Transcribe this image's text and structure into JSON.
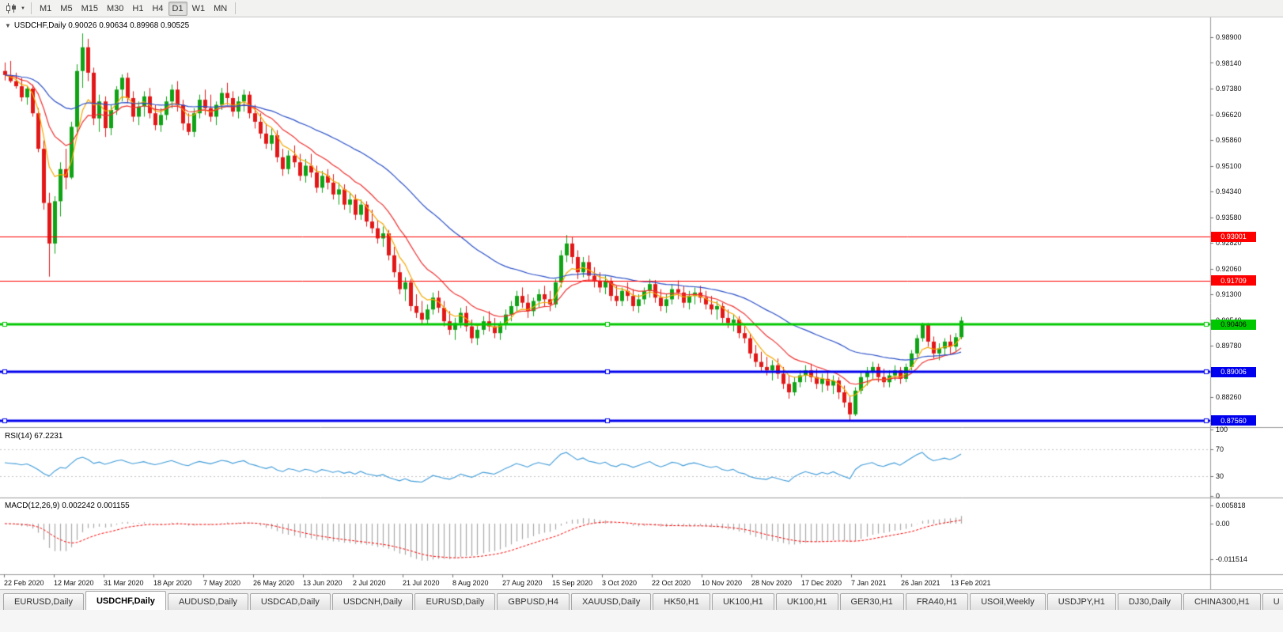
{
  "toolbar": {
    "timeframes": [
      "M1",
      "M5",
      "M15",
      "M30",
      "H1",
      "H4",
      "D1",
      "W1",
      "MN"
    ],
    "active_timeframe": "D1",
    "icons": [
      "candlestick-chart-icon",
      "chart-type-dropdown-arrow-icon",
      "one-click-trading-arrow-icon"
    ]
  },
  "chart": {
    "title_text": "USDCHF,Daily 0.90026 0.90634 0.89968 0.90525",
    "rsi_label": "RSI(14) 67.2231",
    "macd_label": "MACD(12,26,9) 0.002242 0.001155"
  },
  "price_axis": {
    "labels": [
      "0.98900",
      "0.98140",
      "0.97380",
      "0.96620",
      "0.95860",
      "0.95100",
      "0.94340",
      "0.93580",
      "0.92820",
      "0.92060",
      "0.91300",
      "0.90540",
      "0.89780",
      "0.89020",
      "0.88260",
      "0.87500"
    ]
  },
  "rsi_axis": {
    "labels": [
      "100",
      "70",
      "30",
      "0"
    ]
  },
  "macd_axis": {
    "labels": [
      "0.005818",
      "0.00",
      "-0.011514"
    ]
  },
  "date_axis": {
    "labels": [
      "22 Feb 2020",
      "12 Mar 2020",
      "31 Mar 2020",
      "18 Apr 2020",
      "7 May 2020",
      "26 May 2020",
      "13 Jun 2020",
      "2 Jul 2020",
      "21 Jul 2020",
      "8 Aug 2020",
      "27 Aug 2020",
      "15 Sep 2020",
      "3 Oct 2020",
      "22 Oct 2020",
      "10 Nov 2020",
      "28 Nov 2020",
      "17 Dec 2020",
      "7 Jan 2021",
      "26 Jan 2021",
      "13 Feb 2021"
    ]
  },
  "tabs": [
    {
      "label": "EURUSD,Daily",
      "active": false
    },
    {
      "label": "USDCHF,Daily",
      "active": true
    },
    {
      "label": "AUDUSD,Daily",
      "active": false
    },
    {
      "label": "USDCAD,Daily",
      "active": false
    },
    {
      "label": "USDCNH,Daily",
      "active": false
    },
    {
      "label": "EURUSD,Daily",
      "active": false
    },
    {
      "label": "GBPUSD,H4",
      "active": false
    },
    {
      "label": "XAUUSD,Daily",
      "active": false
    },
    {
      "label": "HK50,H1",
      "active": false
    },
    {
      "label": "UK100,H1",
      "active": false
    },
    {
      "label": "UK100,H1",
      "active": false
    },
    {
      "label": "GER30,H1",
      "active": false
    },
    {
      "label": "FRA40,H1",
      "active": false
    },
    {
      "label": "USOil,Weekly",
      "active": false
    },
    {
      "label": "USDJPY,H1",
      "active": false
    },
    {
      "label": "DJ30,Daily",
      "active": false
    },
    {
      "label": "CHINA300,H1",
      "active": false
    },
    {
      "label": "U",
      "active": false
    }
  ],
  "chart_data": {
    "type": "candlestick",
    "symbol": "USDCHF",
    "timeframe": "Daily",
    "current_ohlc": {
      "open": 0.90026,
      "high": 0.90634,
      "low": 0.89968,
      "close": 0.90525
    },
    "y_axis_range": [
      0.8734,
      0.9893
    ],
    "x_axis_start": "22 Feb 2020",
    "x_axis_end": "13 Feb 2021",
    "candle_up_color": "#0FA315",
    "candle_down_color": "#E21717",
    "moving_averages": [
      {
        "name": "fast",
        "period": 6,
        "color": "#F5A800"
      },
      {
        "name": "medium",
        "period": 14,
        "color": "#F03030"
      },
      {
        "name": "slow",
        "period": 40,
        "color": "#2B50C8"
      }
    ],
    "horizontal_lines": [
      {
        "label": "0.93001",
        "price": 0.93001,
        "color": "#FF0000",
        "width": 1,
        "label_text_color": "#FFFFFF"
      },
      {
        "label": "0.91709",
        "price": 0.91709,
        "color": "#FF0000",
        "width": 1,
        "label_text_color": "#FFFFFF"
      },
      {
        "label": "0.90406",
        "price": 0.90406,
        "color": "#00C800",
        "width": 3,
        "label_text_color": "#000000"
      },
      {
        "label": "0.89006",
        "price": 0.89006,
        "color": "#0000EE",
        "width": 3,
        "label_text_color": "#FFFFFF"
      },
      {
        "label": "0.87560",
        "price": 0.8756,
        "color": "#0000EE",
        "width": 3,
        "label_text_color": "#FFFFFF"
      }
    ],
    "indicators": [
      {
        "name": "RSI",
        "period": 14,
        "value": 67.2231,
        "levels": [
          70,
          30
        ],
        "color": "#3E9BD8"
      },
      {
        "name": "MACD",
        "fast": 12,
        "slow": 26,
        "signal": 9,
        "macd_value": 0.002242,
        "signal_value": 0.001155,
        "histogram_color": "#A8A8A8",
        "signal_color": "#FF0000"
      }
    ],
    "ohlc": [
      [
        0.979,
        0.9815,
        0.9762,
        0.9778
      ],
      [
        0.9778,
        0.982,
        0.9755,
        0.976
      ],
      [
        0.976,
        0.9785,
        0.9738,
        0.9745
      ],
      [
        0.9745,
        0.977,
        0.97,
        0.9712
      ],
      [
        0.9712,
        0.9745,
        0.969,
        0.9738
      ],
      [
        0.9738,
        0.975,
        0.9655,
        0.9665
      ],
      [
        0.9665,
        0.968,
        0.955,
        0.956
      ],
      [
        0.956,
        0.9585,
        0.938,
        0.94
      ],
      [
        0.94,
        0.943,
        0.9182,
        0.928
      ],
      [
        0.928,
        0.942,
        0.925,
        0.9405
      ],
      [
        0.9405,
        0.952,
        0.936,
        0.95
      ],
      [
        0.95,
        0.956,
        0.944,
        0.9475
      ],
      [
        0.9475,
        0.964,
        0.947,
        0.9625
      ],
      [
        0.9625,
        0.981,
        0.96,
        0.979
      ],
      [
        0.979,
        0.9901,
        0.974,
        0.986
      ],
      [
        0.986,
        0.9885,
        0.976,
        0.9785
      ],
      [
        0.9785,
        0.98,
        0.963,
        0.965
      ],
      [
        0.965,
        0.972,
        0.961,
        0.97
      ],
      [
        0.97,
        0.9715,
        0.9595,
        0.9621
      ],
      [
        0.9621,
        0.969,
        0.96,
        0.9675
      ],
      [
        0.9675,
        0.9745,
        0.966,
        0.9735
      ],
      [
        0.9735,
        0.978,
        0.97,
        0.977
      ],
      [
        0.977,
        0.9785,
        0.9695,
        0.971
      ],
      [
        0.971,
        0.973,
        0.964,
        0.9655
      ],
      [
        0.9655,
        0.97,
        0.963,
        0.9685
      ],
      [
        0.9685,
        0.973,
        0.9655,
        0.9715
      ],
      [
        0.9715,
        0.974,
        0.965,
        0.9665
      ],
      [
        0.9665,
        0.969,
        0.9615,
        0.963
      ],
      [
        0.963,
        0.968,
        0.961,
        0.966
      ],
      [
        0.966,
        0.9715,
        0.9645,
        0.97
      ],
      [
        0.97,
        0.975,
        0.968,
        0.9735
      ],
      [
        0.9735,
        0.976,
        0.967,
        0.969
      ],
      [
        0.969,
        0.9705,
        0.9615,
        0.9635
      ],
      [
        0.9635,
        0.9665,
        0.96,
        0.961
      ],
      [
        0.961,
        0.968,
        0.9595,
        0.9665
      ],
      [
        0.9665,
        0.972,
        0.965,
        0.9705
      ],
      [
        0.9705,
        0.9735,
        0.966,
        0.968
      ],
      [
        0.968,
        0.972,
        0.964,
        0.9655
      ],
      [
        0.9655,
        0.97,
        0.963,
        0.969
      ],
      [
        0.969,
        0.974,
        0.9675,
        0.9725
      ],
      [
        0.9725,
        0.9755,
        0.969,
        0.971
      ],
      [
        0.971,
        0.973,
        0.9655,
        0.967
      ],
      [
        0.967,
        0.9715,
        0.965,
        0.97
      ],
      [
        0.97,
        0.9735,
        0.967,
        0.972
      ],
      [
        0.972,
        0.973,
        0.965,
        0.9665
      ],
      [
        0.9665,
        0.969,
        0.962,
        0.964
      ],
      [
        0.964,
        0.9665,
        0.959,
        0.9605
      ],
      [
        0.9605,
        0.9635,
        0.956,
        0.9575
      ],
      [
        0.9575,
        0.962,
        0.9555,
        0.96
      ],
      [
        0.96,
        0.9615,
        0.952,
        0.9535
      ],
      [
        0.9535,
        0.956,
        0.948,
        0.95
      ],
      [
        0.95,
        0.9555,
        0.9485,
        0.954
      ],
      [
        0.954,
        0.957,
        0.9505,
        0.952
      ],
      [
        0.952,
        0.9545,
        0.9465,
        0.948
      ],
      [
        0.948,
        0.953,
        0.946,
        0.951
      ],
      [
        0.951,
        0.9545,
        0.9475,
        0.949
      ],
      [
        0.949,
        0.951,
        0.943,
        0.9445
      ],
      [
        0.9445,
        0.9495,
        0.943,
        0.948
      ],
      [
        0.948,
        0.95,
        0.944,
        0.946
      ],
      [
        0.946,
        0.9485,
        0.941,
        0.9425
      ],
      [
        0.9425,
        0.946,
        0.9395,
        0.944
      ],
      [
        0.944,
        0.9455,
        0.938,
        0.9395
      ],
      [
        0.9395,
        0.943,
        0.937,
        0.941
      ],
      [
        0.941,
        0.9425,
        0.935,
        0.9365
      ],
      [
        0.9365,
        0.941,
        0.935,
        0.9395
      ],
      [
        0.9395,
        0.9405,
        0.933,
        0.9345
      ],
      [
        0.9345,
        0.938,
        0.931,
        0.9325
      ],
      [
        0.9325,
        0.935,
        0.928,
        0.9295
      ],
      [
        0.9295,
        0.933,
        0.927,
        0.931
      ],
      [
        0.931,
        0.932,
        0.923,
        0.9245
      ],
      [
        0.9245,
        0.927,
        0.918,
        0.9195
      ],
      [
        0.9195,
        0.922,
        0.913,
        0.9145
      ],
      [
        0.9145,
        0.918,
        0.911,
        0.9165
      ],
      [
        0.9165,
        0.9175,
        0.908,
        0.9095
      ],
      [
        0.9095,
        0.913,
        0.906,
        0.9075
      ],
      [
        0.9075,
        0.911,
        0.904,
        0.9055
      ],
      [
        0.9055,
        0.91,
        0.904,
        0.9085
      ],
      [
        0.9085,
        0.9135,
        0.907,
        0.912
      ],
      [
        0.912,
        0.914,
        0.9075,
        0.909
      ],
      [
        0.909,
        0.911,
        0.9035,
        0.905
      ],
      [
        0.905,
        0.908,
        0.901,
        0.9025
      ],
      [
        0.9025,
        0.906,
        0.8995,
        0.9045
      ],
      [
        0.9045,
        0.909,
        0.903,
        0.9075
      ],
      [
        0.9075,
        0.9095,
        0.902,
        0.9035
      ],
      [
        0.9035,
        0.9055,
        0.8985,
        0.9
      ],
      [
        0.9,
        0.904,
        0.898,
        0.9025
      ],
      [
        0.9025,
        0.9065,
        0.901,
        0.905
      ],
      [
        0.905,
        0.908,
        0.902,
        0.9035
      ],
      [
        0.9035,
        0.906,
        0.9,
        0.9015
      ],
      [
        0.9015,
        0.905,
        0.8995,
        0.904
      ],
      [
        0.904,
        0.9085,
        0.9025,
        0.907
      ],
      [
        0.907,
        0.911,
        0.905,
        0.9095
      ],
      [
        0.9095,
        0.914,
        0.908,
        0.9125
      ],
      [
        0.9125,
        0.915,
        0.909,
        0.9105
      ],
      [
        0.9105,
        0.913,
        0.906,
        0.908
      ],
      [
        0.908,
        0.912,
        0.9065,
        0.911
      ],
      [
        0.911,
        0.9145,
        0.909,
        0.913
      ],
      [
        0.913,
        0.9155,
        0.9095,
        0.9115
      ],
      [
        0.9115,
        0.914,
        0.908,
        0.91
      ],
      [
        0.91,
        0.9175,
        0.909,
        0.9165
      ],
      [
        0.9165,
        0.926,
        0.915,
        0.9245
      ],
      [
        0.9245,
        0.9305,
        0.9225,
        0.928
      ],
      [
        0.928,
        0.93,
        0.922,
        0.924
      ],
      [
        0.924,
        0.926,
        0.9175,
        0.9195
      ],
      [
        0.9195,
        0.924,
        0.918,
        0.9225
      ],
      [
        0.9225,
        0.9245,
        0.917,
        0.9185
      ],
      [
        0.9185,
        0.921,
        0.915,
        0.917
      ],
      [
        0.917,
        0.9195,
        0.9135,
        0.915
      ],
      [
        0.915,
        0.9185,
        0.913,
        0.917
      ],
      [
        0.917,
        0.918,
        0.911,
        0.9125
      ],
      [
        0.9125,
        0.9155,
        0.9095,
        0.911
      ],
      [
        0.911,
        0.915,
        0.9095,
        0.914
      ],
      [
        0.914,
        0.9165,
        0.911,
        0.9125
      ],
      [
        0.9125,
        0.9145,
        0.908,
        0.9095
      ],
      [
        0.9095,
        0.913,
        0.9075,
        0.9115
      ],
      [
        0.9115,
        0.915,
        0.91,
        0.914
      ],
      [
        0.914,
        0.9175,
        0.912,
        0.916
      ],
      [
        0.916,
        0.9172,
        0.9105,
        0.912
      ],
      [
        0.912,
        0.9145,
        0.908,
        0.9095
      ],
      [
        0.9095,
        0.913,
        0.9075,
        0.9115
      ],
      [
        0.9115,
        0.916,
        0.91,
        0.9145
      ],
      [
        0.9145,
        0.9171,
        0.9115,
        0.9135
      ],
      [
        0.9135,
        0.9155,
        0.909,
        0.9105
      ],
      [
        0.9105,
        0.914,
        0.9085,
        0.9125
      ],
      [
        0.9125,
        0.915,
        0.91,
        0.9135
      ],
      [
        0.9135,
        0.9155,
        0.9105,
        0.912
      ],
      [
        0.912,
        0.914,
        0.9085,
        0.91
      ],
      [
        0.91,
        0.9125,
        0.907,
        0.9085
      ],
      [
        0.9085,
        0.911,
        0.9055,
        0.9095
      ],
      [
        0.9095,
        0.9105,
        0.9045,
        0.906
      ],
      [
        0.906,
        0.9085,
        0.903,
        0.9045
      ],
      [
        0.9045,
        0.907,
        0.902,
        0.9055
      ],
      [
        0.9055,
        0.9065,
        0.9,
        0.9015
      ],
      [
        0.9015,
        0.904,
        0.8985,
        0.9
      ],
      [
        0.9,
        0.9015,
        0.894,
        0.8955
      ],
      [
        0.8955,
        0.898,
        0.8915,
        0.893
      ],
      [
        0.893,
        0.896,
        0.89,
        0.8915
      ],
      [
        0.8915,
        0.8945,
        0.889,
        0.8905
      ],
      [
        0.8905,
        0.8935,
        0.8875,
        0.892
      ],
      [
        0.892,
        0.894,
        0.888,
        0.8895
      ],
      [
        0.8895,
        0.8915,
        0.885,
        0.8865
      ],
      [
        0.8865,
        0.889,
        0.8821,
        0.884
      ],
      [
        0.884,
        0.8885,
        0.883,
        0.887
      ],
      [
        0.887,
        0.8905,
        0.8855,
        0.889
      ],
      [
        0.889,
        0.892,
        0.887,
        0.8905
      ],
      [
        0.8905,
        0.8925,
        0.887,
        0.8885
      ],
      [
        0.8885,
        0.891,
        0.885,
        0.8865
      ],
      [
        0.8865,
        0.8895,
        0.884,
        0.888
      ],
      [
        0.888,
        0.89,
        0.8845,
        0.886
      ],
      [
        0.886,
        0.889,
        0.8835,
        0.8875
      ],
      [
        0.8875,
        0.8885,
        0.882,
        0.884
      ],
      [
        0.884,
        0.886,
        0.8795,
        0.881
      ],
      [
        0.881,
        0.883,
        0.8757,
        0.8775
      ],
      [
        0.8775,
        0.8855,
        0.877,
        0.8845
      ],
      [
        0.8845,
        0.89,
        0.8835,
        0.8885
      ],
      [
        0.8885,
        0.8915,
        0.886,
        0.89
      ],
      [
        0.89,
        0.893,
        0.888,
        0.8915
      ],
      [
        0.8915,
        0.8925,
        0.887,
        0.8885
      ],
      [
        0.8885,
        0.891,
        0.8855,
        0.887
      ],
      [
        0.887,
        0.8905,
        0.8855,
        0.889
      ],
      [
        0.889,
        0.892,
        0.8875,
        0.8905
      ],
      [
        0.8905,
        0.8915,
        0.8865,
        0.888
      ],
      [
        0.888,
        0.8925,
        0.887,
        0.8915
      ],
      [
        0.8915,
        0.8965,
        0.8905,
        0.8955
      ],
      [
        0.8955,
        0.901,
        0.8945,
        0.9
      ],
      [
        0.9,
        0.9046,
        0.899,
        0.904
      ],
      [
        0.904,
        0.9045,
        0.8975,
        0.899
      ],
      [
        0.899,
        0.9005,
        0.894,
        0.8955
      ],
      [
        0.8955,
        0.8985,
        0.8935,
        0.897
      ],
      [
        0.897,
        0.9,
        0.895,
        0.899
      ],
      [
        0.899,
        0.901,
        0.8955,
        0.8975
      ],
      [
        0.8975,
        0.9015,
        0.896,
        0.9003
      ],
      [
        0.9003,
        0.9063,
        0.8997,
        0.9052
      ]
    ]
  }
}
